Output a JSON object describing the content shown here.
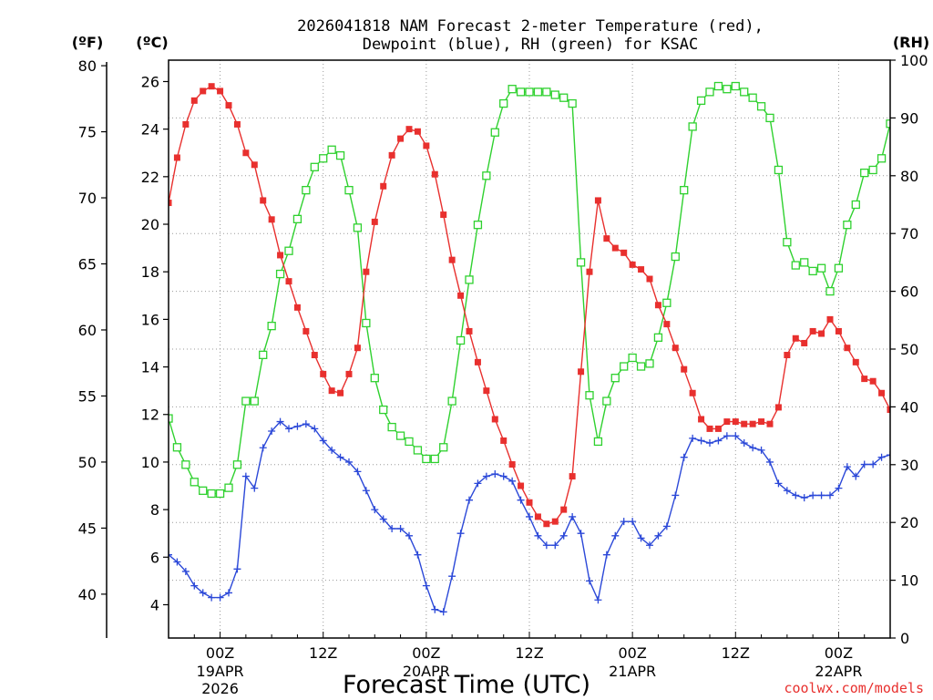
{
  "chart_data": {
    "type": "line",
    "title_line1": "2026041818 NAM Forecast 2-meter Temperature (red),",
    "title_line2": "Dewpoint (blue), RH (green) for KSAC",
    "xlabel": "Forecast Time (UTC)",
    "credit": "coolwx.com/models",
    "unit_f": "(ºF)",
    "unit_c": "(ºC)",
    "unit_rh": "(RH)",
    "x_range_hours": [
      0,
      84
    ],
    "x_step_hours": 1,
    "celsius_range": [
      2.6,
      26.9
    ],
    "rh_range": [
      0,
      100
    ],
    "fahrenheit_ticks": [
      40,
      45,
      50,
      55,
      60,
      65,
      70,
      75,
      80
    ],
    "celsius_ticks": [
      4,
      6,
      8,
      10,
      12,
      14,
      16,
      18,
      20,
      22,
      24,
      26
    ],
    "rh_ticks": [
      0,
      10,
      20,
      30,
      40,
      50,
      60,
      70,
      80,
      90,
      100
    ],
    "x_ticks": [
      {
        "hour": 6,
        "label": "00Z",
        "date": "19APR",
        "year": "2026"
      },
      {
        "hour": 18,
        "label": "12Z",
        "date": "",
        "year": ""
      },
      {
        "hour": 30,
        "label": "00Z",
        "date": "20APR",
        "year": ""
      },
      {
        "hour": 42,
        "label": "12Z",
        "date": "",
        "year": ""
      },
      {
        "hour": 54,
        "label": "00Z",
        "date": "21APR",
        "year": ""
      },
      {
        "hour": 66,
        "label": "12Z",
        "date": "",
        "year": ""
      },
      {
        "hour": 78,
        "label": "00Z",
        "date": "22APR",
        "year": ""
      }
    ],
    "series": [
      {
        "name": "Temperature (red)",
        "axis": "celsius",
        "color": "#e8302e",
        "marker": "filled-square",
        "values": [
          20.9,
          22.8,
          24.2,
          25.2,
          25.6,
          25.8,
          25.6,
          25.0,
          24.2,
          23.0,
          22.5,
          21.0,
          20.2,
          18.7,
          17.6,
          16.5,
          15.5,
          14.5,
          13.7,
          13.0,
          12.9,
          13.7,
          14.8,
          18.0,
          20.1,
          21.6,
          22.9,
          23.6,
          24.0,
          23.9,
          23.3,
          22.1,
          20.4,
          18.5,
          17.0,
          15.5,
          14.2,
          13.0,
          11.8,
          10.9,
          9.9,
          9.0,
          8.3,
          7.7,
          7.4,
          7.5,
          8.0,
          9.4,
          13.8,
          18.0,
          21.0,
          19.4,
          19.0,
          18.8,
          18.3,
          18.1,
          17.7,
          16.6,
          15.8,
          14.8,
          13.9,
          12.9,
          11.8,
          11.4,
          11.4,
          11.7,
          11.7,
          11.6,
          11.6,
          11.7,
          11.6,
          12.3,
          14.5,
          15.2,
          15.0,
          15.5,
          15.4,
          16.0,
          15.5,
          14.8,
          14.2,
          13.5,
          13.4,
          12.9,
          12.2
        ]
      },
      {
        "name": "Dewpoint (blue)",
        "axis": "celsius",
        "color": "#2b48d8",
        "marker": "plus",
        "values": [
          6.1,
          5.8,
          5.4,
          4.8,
          4.5,
          4.3,
          4.3,
          4.5,
          5.5,
          9.4,
          8.9,
          10.6,
          11.3,
          11.7,
          11.4,
          11.5,
          11.6,
          11.4,
          10.9,
          10.5,
          10.2,
          10.0,
          9.6,
          8.8,
          8.0,
          7.6,
          7.2,
          7.2,
          6.9,
          6.1,
          4.8,
          3.8,
          3.7,
          5.2,
          7.0,
          8.4,
          9.1,
          9.4,
          9.5,
          9.4,
          9.2,
          8.4,
          7.7,
          6.9,
          6.5,
          6.5,
          6.9,
          7.7,
          7.0,
          5.0,
          4.2,
          6.1,
          6.9,
          7.5,
          7.5,
          6.8,
          6.5,
          6.9,
          7.3,
          8.6,
          10.2,
          11.0,
          10.9,
          10.8,
          10.9,
          11.1,
          11.1,
          10.8,
          10.6,
          10.5,
          10.0,
          9.1,
          8.8,
          8.6,
          8.5,
          8.6,
          8.6,
          8.6,
          8.9,
          9.8,
          9.4,
          9.9,
          9.9,
          10.2,
          10.3
        ]
      },
      {
        "name": "RH (green)",
        "axis": "rh",
        "color": "#2fd12f",
        "marker": "open-square",
        "values": [
          38,
          33,
          30,
          27,
          25.5,
          25,
          25,
          26,
          30,
          41,
          41,
          49,
          54,
          63,
          67,
          72.5,
          77.5,
          81.5,
          83,
          84.5,
          83.5,
          77.5,
          71,
          54.5,
          45,
          39.5,
          36.5,
          35,
          34,
          32.5,
          31,
          31,
          33,
          41,
          51.5,
          62,
          71.5,
          80,
          87.5,
          92.5,
          95,
          94.5,
          94.5,
          94.5,
          94.5,
          94,
          93.5,
          92.5,
          65,
          42,
          34,
          41,
          45,
          47,
          48.5,
          47,
          47.5,
          52,
          58,
          66,
          77.5,
          88.5,
          93,
          94.5,
          95.5,
          95,
          95.5,
          94.5,
          93.5,
          92,
          90,
          81,
          68.5,
          64.5,
          65,
          63.5,
          64,
          60,
          64,
          71.5,
          75,
          80.5,
          81,
          83,
          89
        ]
      }
    ]
  }
}
